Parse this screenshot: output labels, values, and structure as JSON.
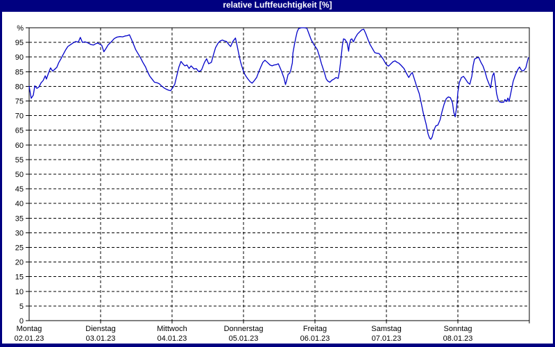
{
  "window": {
    "title": "relative Luftfeuchtigkeit [%]"
  },
  "colors": {
    "title_bar_bg": "#000080",
    "title_text": "#ffffff",
    "outer_border": "#000080",
    "plot_bg": "#ffffff",
    "grid": "#000000",
    "line": "#0000C8"
  },
  "chart_data": {
    "type": "line",
    "title": "relative Luftfeuchtigkeit [%]",
    "unit": "%",
    "ylim": [
      0,
      100
    ],
    "y_ticks": [
      0,
      5,
      10,
      15,
      20,
      25,
      30,
      35,
      40,
      45,
      50,
      55,
      60,
      65,
      70,
      75,
      80,
      85,
      90,
      95
    ],
    "y_top_label": "%",
    "grid": "dashed",
    "legend_position": "none",
    "x_hours_total": 168,
    "x_axis": {
      "days": [
        {
          "label": "Montag",
          "date": "02.01.23"
        },
        {
          "label": "Dienstag",
          "date": "03.01.23"
        },
        {
          "label": "Mittwoch",
          "date": "04.01.23"
        },
        {
          "label": "Donnerstag",
          "date": "05.01.23"
        },
        {
          "label": "Freitag",
          "date": "06.01.23"
        },
        {
          "label": "Samstag",
          "date": "07.01.23"
        },
        {
          "label": "Sonntag",
          "date": "08.01.23"
        }
      ]
    },
    "series": [
      {
        "name": "relative Luftfeuchtigkeit",
        "color": "#0000C8",
        "points": [
          [
            0,
            80
          ],
          [
            0.7,
            75.9
          ],
          [
            1.4,
            77
          ],
          [
            1.9,
            80.2
          ],
          [
            2.6,
            79.3
          ],
          [
            3.3,
            79.8
          ],
          [
            4,
            81.2
          ],
          [
            4.7,
            82
          ],
          [
            5.4,
            83.6
          ],
          [
            5.8,
            82.5
          ],
          [
            6.5,
            84.5
          ],
          [
            7.2,
            86.3
          ],
          [
            7.9,
            85.2
          ],
          [
            8.6,
            85.8
          ],
          [
            9.3,
            86.5
          ],
          [
            10,
            88.2
          ],
          [
            10.7,
            89.4
          ],
          [
            11.4,
            90.8
          ],
          [
            12.3,
            92.5
          ],
          [
            13,
            93.6
          ],
          [
            14,
            94.3
          ],
          [
            14.9,
            94.9
          ],
          [
            15.6,
            95.3
          ],
          [
            16.5,
            95.1
          ],
          [
            17.2,
            96.7
          ],
          [
            17.9,
            95
          ],
          [
            18.8,
            95.2
          ],
          [
            19.8,
            94.8
          ],
          [
            20.7,
            94.3
          ],
          [
            21.6,
            94.1
          ],
          [
            22.3,
            94.5
          ],
          [
            23,
            94.8
          ],
          [
            23.7,
            94.4
          ],
          [
            24.4,
            94
          ],
          [
            25.1,
            91.8
          ],
          [
            25.8,
            92.9
          ],
          [
            26.5,
            94.1
          ],
          [
            27.7,
            95.3
          ],
          [
            28.6,
            96.3
          ],
          [
            29.5,
            96.8
          ],
          [
            30.5,
            97
          ],
          [
            31.4,
            96.9
          ],
          [
            32.3,
            97.2
          ],
          [
            33,
            97.3
          ],
          [
            33.7,
            97.6
          ],
          [
            34.4,
            96
          ],
          [
            35.1,
            94.3
          ],
          [
            35.8,
            92.5
          ],
          [
            36.8,
            90.8
          ],
          [
            37.5,
            89.6
          ],
          [
            38.2,
            88.2
          ],
          [
            39.1,
            86.6
          ],
          [
            39.8,
            84.9
          ],
          [
            40.5,
            83.5
          ],
          [
            41.4,
            82.3
          ],
          [
            42.1,
            81.4
          ],
          [
            43,
            81.2
          ],
          [
            43.7,
            80.9
          ],
          [
            44.4,
            80.2
          ],
          [
            45.4,
            79.4
          ],
          [
            46.1,
            79
          ],
          [
            46.8,
            78.7
          ],
          [
            47.5,
            78.5
          ],
          [
            48.2,
            79.5
          ],
          [
            48.9,
            80.7
          ],
          [
            49.6,
            83.7
          ],
          [
            50.3,
            86.6
          ],
          [
            51,
            88.5
          ],
          [
            51.7,
            87.6
          ],
          [
            52.3,
            87
          ],
          [
            53,
            87.3
          ],
          [
            53.7,
            86.1
          ],
          [
            54.4,
            87
          ],
          [
            55.4,
            85.9
          ],
          [
            56.1,
            86.1
          ],
          [
            57,
            85
          ],
          [
            57.9,
            85.6
          ],
          [
            58.9,
            88.2
          ],
          [
            59.6,
            89.4
          ],
          [
            60.3,
            87.7
          ],
          [
            61.2,
            88.2
          ],
          [
            61.9,
            90.8
          ],
          [
            62.6,
            93.2
          ],
          [
            63.5,
            94.8
          ],
          [
            64.2,
            95.5
          ],
          [
            64.9,
            95.8
          ],
          [
            65.6,
            95.5
          ],
          [
            66.3,
            95.3
          ],
          [
            67.2,
            94.1
          ],
          [
            67.7,
            93.6
          ],
          [
            68.4,
            95.3
          ],
          [
            69.3,
            96.5
          ],
          [
            70,
            93.2
          ],
          [
            70.5,
            90.6
          ],
          [
            71,
            88.4
          ],
          [
            71.4,
            87
          ],
          [
            71.9,
            85.4
          ],
          [
            72.4,
            84.2
          ],
          [
            72.8,
            83.5
          ],
          [
            73.5,
            82.5
          ],
          [
            74.2,
            81.6
          ],
          [
            74.9,
            81.1
          ],
          [
            75.6,
            81.9
          ],
          [
            76.4,
            83
          ],
          [
            77.1,
            84.9
          ],
          [
            77.8,
            86.6
          ],
          [
            78.5,
            88.2
          ],
          [
            79.2,
            88.9
          ],
          [
            80,
            88.2
          ],
          [
            80.9,
            87.3
          ],
          [
            81.6,
            87
          ],
          [
            82.3,
            87.3
          ],
          [
            83,
            87.4
          ],
          [
            83.7,
            87.7
          ],
          [
            84.4,
            86.1
          ],
          [
            85,
            84.5
          ],
          [
            85.6,
            82.8
          ],
          [
            86.1,
            80.6
          ],
          [
            86.6,
            82.5
          ],
          [
            87,
            84.2
          ],
          [
            87.5,
            84.4
          ],
          [
            87.9,
            85.6
          ],
          [
            88.4,
            88
          ],
          [
            88.6,
            91.3
          ],
          [
            89.1,
            94.3
          ],
          [
            89.6,
            96.7
          ],
          [
            90,
            98.6
          ],
          [
            90.5,
            99.7
          ],
          [
            91.4,
            100
          ],
          [
            92.4,
            100
          ],
          [
            93.3,
            99.8
          ],
          [
            94,
            97.9
          ],
          [
            94.7,
            96
          ],
          [
            95.6,
            94.3
          ],
          [
            96.1,
            93.6
          ],
          [
            96.8,
            92.5
          ],
          [
            97.5,
            90.3
          ],
          [
            98.2,
            87.7
          ],
          [
            99.1,
            84.9
          ],
          [
            99.8,
            82.5
          ],
          [
            100.3,
            81.8
          ],
          [
            101,
            81.4
          ],
          [
            101.7,
            82.1
          ],
          [
            102.4,
            82.5
          ],
          [
            103.1,
            83
          ],
          [
            103.8,
            82.7
          ],
          [
            104.2,
            85
          ],
          [
            104.7,
            89
          ],
          [
            105.2,
            94
          ],
          [
            105.6,
            96.2
          ],
          [
            106.1,
            96
          ],
          [
            106.8,
            94.8
          ],
          [
            107.3,
            92
          ],
          [
            107.5,
            93.9
          ],
          [
            108,
            96
          ],
          [
            108.4,
            96.2
          ],
          [
            108.9,
            95.2
          ],
          [
            109.6,
            96.7
          ],
          [
            110.3,
            97.9
          ],
          [
            111,
            98.6
          ],
          [
            111.7,
            99.3
          ],
          [
            112.4,
            99.5
          ],
          [
            113.1,
            97.9
          ],
          [
            113.8,
            96
          ],
          [
            114.5,
            94.3
          ],
          [
            115.4,
            92.7
          ],
          [
            116.1,
            91.5
          ],
          [
            116.8,
            91.3
          ],
          [
            117.5,
            91.2
          ],
          [
            118.2,
            90.3
          ],
          [
            118.9,
            89.3
          ],
          [
            119.6,
            88
          ],
          [
            120,
            87.4
          ],
          [
            120.7,
            86.9
          ],
          [
            121.4,
            87.6
          ],
          [
            122.2,
            88.4
          ],
          [
            122.9,
            88.7
          ],
          [
            123.6,
            88.2
          ],
          [
            124.2,
            87.9
          ],
          [
            124.9,
            87.2
          ],
          [
            125.9,
            86.1
          ],
          [
            126.6,
            84.7
          ],
          [
            127.5,
            83
          ],
          [
            128.2,
            84.2
          ],
          [
            128.7,
            84.7
          ],
          [
            129.4,
            82.5
          ],
          [
            130.1,
            80.2
          ],
          [
            131,
            77.6
          ],
          [
            131.7,
            74.3
          ],
          [
            132.4,
            70.8
          ],
          [
            133.3,
            67.2
          ],
          [
            134,
            63.7
          ],
          [
            134.5,
            62.3
          ],
          [
            134.9,
            61.9
          ],
          [
            135.4,
            62.8
          ],
          [
            135.9,
            64.9
          ],
          [
            136.6,
            66.5
          ],
          [
            137.3,
            66.8
          ],
          [
            138,
            68.5
          ],
          [
            138.7,
            71.5
          ],
          [
            139.4,
            74
          ],
          [
            140.1,
            75.8
          ],
          [
            140.8,
            76.4
          ],
          [
            141.5,
            76.1
          ],
          [
            142.2,
            74.3
          ],
          [
            142.6,
            71.2
          ],
          [
            143.1,
            69.6
          ],
          [
            143.6,
            73
          ],
          [
            144,
            78
          ],
          [
            144.5,
            81.3
          ],
          [
            145.2,
            83
          ],
          [
            145.9,
            83.4
          ],
          [
            146.6,
            82.4
          ],
          [
            147.3,
            81.3
          ],
          [
            148,
            80.7
          ],
          [
            148.7,
            83.5
          ],
          [
            149.1,
            87
          ],
          [
            149.6,
            89.3
          ],
          [
            150.3,
            89.7
          ],
          [
            151,
            89.9
          ],
          [
            151.7,
            88.3
          ],
          [
            152.4,
            87
          ],
          [
            153.1,
            85
          ],
          [
            153.8,
            82.5
          ],
          [
            154.5,
            80.7
          ],
          [
            155,
            79.5
          ],
          [
            155.6,
            83.5
          ],
          [
            156.1,
            84.6
          ],
          [
            156.6,
            81
          ],
          [
            157,
            77.5
          ],
          [
            157.5,
            75.5
          ],
          [
            158,
            74.7
          ],
          [
            158.7,
            74.5
          ],
          [
            159.4,
            74.6
          ],
          [
            159.8,
            75.5
          ],
          [
            160.3,
            74.8
          ],
          [
            160.8,
            76
          ],
          [
            161.2,
            74.8
          ],
          [
            161.9,
            78.3
          ],
          [
            162.6,
            81.8
          ],
          [
            163.3,
            83.8
          ],
          [
            164,
            85.5
          ],
          [
            164.7,
            86.6
          ],
          [
            165.4,
            85.4
          ],
          [
            166.1,
            85.3
          ],
          [
            166.8,
            86.3
          ],
          [
            167.3,
            88.3
          ],
          [
            167.7,
            89.8
          ]
        ]
      }
    ]
  }
}
